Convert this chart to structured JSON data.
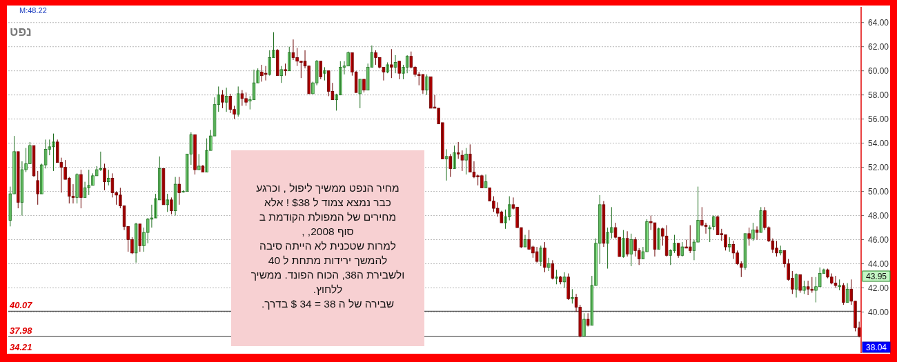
{
  "chart_data": {
    "type": "candlestick",
    "title": "נפט",
    "annotations": [
      "M:48.22",
      "34.21",
      "מחיר  הנפט ממשיך ליפול , וכרגע\nכבר נמצא  צמוד ל $38 ! אלא\nמחירים  של המפולת הקודמת ב\nסוף 2008, ,\nלמרות שטכנית לא הייתה סיבה\nלהמשך ירידות מתחת ל 40\nולשבירת ה38, הכוח הפונד. ממשיך\nללחוץ.\nשבירה של ה 38 = 34 $ בדרך.",
      "43.95",
      "38.04"
    ],
    "ref_lines": [
      {
        "axis": "y",
        "value": 40.07,
        "label": "40.07",
        "color": "#555555"
      },
      {
        "axis": "y",
        "value": 37.98,
        "label": "37.98",
        "color": "#555555"
      }
    ],
    "ylim": [
      36.6,
      65.3
    ],
    "yticks": [
      {
        "value": 40,
        "label": "40.00"
      },
      {
        "value": 42,
        "label": "42.00"
      },
      {
        "value": 44,
        "label": "44.00"
      },
      {
        "value": 46,
        "label": "46.00"
      },
      {
        "value": 48,
        "label": "48.00"
      },
      {
        "value": 50,
        "label": "50.00"
      },
      {
        "value": 52,
        "label": "52.00"
      },
      {
        "value": 54,
        "label": "54.00"
      },
      {
        "value": 56,
        "label": "56.00"
      },
      {
        "value": 58,
        "label": "58.00"
      },
      {
        "value": 60,
        "label": "60.00"
      },
      {
        "value": 62,
        "label": "62.00"
      },
      {
        "value": 64,
        "label": "64.00"
      }
    ],
    "grid": "y",
    "categories": [
      null,
      null,
      null,
      null,
      null,
      null,
      null,
      null,
      null,
      null,
      null,
      null,
      null,
      null,
      null,
      null,
      null,
      null,
      null,
      null,
      null,
      null,
      null,
      null,
      null,
      null,
      null,
      null,
      null,
      null,
      null,
      null,
      null,
      null,
      null,
      null,
      null,
      null,
      null,
      null,
      null,
      null,
      null,
      null,
      null,
      null,
      null,
      null,
      null,
      null,
      null,
      null,
      null,
      null,
      null,
      null,
      null,
      null,
      null,
      null,
      null,
      null,
      null,
      null,
      null,
      null,
      null,
      null,
      null,
      null,
      null,
      null,
      null,
      null,
      null,
      null,
      null,
      null,
      null,
      null,
      null,
      null,
      null,
      null,
      null,
      null,
      null,
      null,
      null,
      null,
      null,
      null,
      null,
      null,
      null,
      null,
      null,
      null,
      null,
      null,
      null,
      null,
      null,
      null,
      null,
      null,
      null,
      null,
      null,
      null,
      null,
      null,
      null,
      null,
      null,
      null,
      null,
      null,
      null,
      null,
      null,
      null,
      null,
      null,
      null,
      null,
      null,
      null,
      null,
      null,
      null,
      null,
      null,
      null,
      null,
      null,
      null,
      null,
      null,
      null,
      null,
      null,
      null,
      null,
      null,
      null,
      null,
      null,
      null,
      null,
      null,
      null,
      null,
      null,
      null,
      null,
      null,
      null,
      null,
      null,
      null,
      null,
      null,
      null,
      null,
      null,
      null,
      null,
      null,
      null,
      null,
      null,
      null,
      null,
      null,
      null,
      null,
      null,
      null,
      null,
      null,
      null,
      null,
      null,
      null,
      null,
      null,
      null,
      null,
      null,
      null,
      null,
      null,
      null,
      null,
      null,
      null,
      null,
      null,
      null,
      null,
      null,
      null,
      null,
      null,
      null,
      null,
      null,
      null,
      null,
      null,
      null,
      null,
      null,
      null,
      null,
      null
    ],
    "ohlc": [
      [
        47.6,
        50.4,
        47.1,
        49.8
      ],
      [
        49.8,
        54.6,
        49.8,
        53.3
      ],
      [
        53.3,
        53.3,
        48.6,
        49.1
      ],
      [
        49.1,
        52.5,
        48.0,
        51.8
      ],
      [
        51.8,
        53.6,
        51.6,
        52.3
      ],
      [
        52.3,
        54.1,
        52.3,
        53.8
      ],
      [
        53.8,
        53.8,
        51.2,
        51.3
      ],
      [
        50.9,
        51.7,
        48.9,
        49.8
      ],
      [
        49.8,
        52.3,
        49.8,
        52.2
      ],
      [
        52.2,
        54.3,
        51.9,
        53.5
      ],
      [
        53.5,
        54.3,
        53.0,
        53.7
      ],
      [
        53.7,
        54.8,
        51.7,
        54.1
      ],
      [
        54.1,
        54.3,
        52.4,
        52.4
      ],
      [
        52.4,
        52.8,
        49.9,
        52.0
      ],
      [
        52.0,
        52.6,
        51.0,
        51.0
      ],
      [
        51.1,
        51.2,
        49.0,
        49.6
      ],
      [
        49.6,
        50.6,
        49.0,
        49.5
      ],
      [
        49.5,
        51.5,
        49.0,
        51.4
      ],
      [
        51.4,
        51.8,
        48.6,
        49.5
      ],
      [
        49.5,
        50.8,
        49.5,
        50.3
      ],
      [
        50.3,
        51.8,
        49.7,
        50.5
      ],
      [
        50.5,
        51.5,
        50.5,
        51.3
      ],
      [
        51.3,
        52.1,
        51.3,
        51.8
      ],
      [
        51.8,
        53.3,
        51.7,
        51.9
      ],
      [
        51.9,
        52.3,
        50.1,
        50.8
      ],
      [
        50.8,
        51.8,
        50.5,
        51.1
      ],
      [
        51.1,
        51.5,
        49.5,
        49.9
      ],
      [
        49.9,
        50.0,
        48.9,
        49.7
      ],
      [
        49.7,
        50.3,
        48.6,
        48.8
      ],
      [
        48.8,
        48.8,
        46.8,
        47.1
      ],
      [
        47.1,
        47.1,
        45.0,
        46.0
      ],
      [
        46.0,
        46.2,
        44.8,
        44.9
      ],
      [
        44.9,
        47.4,
        44.1,
        47.3
      ],
      [
        47.3,
        47.3,
        45.0,
        45.5
      ],
      [
        45.5,
        47.0,
        45.0,
        46.6
      ],
      [
        46.6,
        47.8,
        45.7,
        47.7
      ],
      [
        47.7,
        48.9,
        47.0,
        47.8
      ],
      [
        47.8,
        49.8,
        47.8,
        49.4
      ],
      [
        49.3,
        52.9,
        49.3,
        51.9
      ],
      [
        51.9,
        51.9,
        48.9,
        48.9
      ],
      [
        48.9,
        49.8,
        48.3,
        49.3
      ],
      [
        49.3,
        49.5,
        48.1,
        48.4
      ],
      [
        48.4,
        51.2,
        48.0,
        50.6
      ],
      [
        50.6,
        51.2,
        48.9,
        49.9
      ],
      [
        50.0,
        50.1,
        49.9,
        50.0
      ],
      [
        50.0,
        53.1,
        50.0,
        53.1
      ],
      [
        53.1,
        54.9,
        52.2,
        54.7
      ],
      [
        54.7,
        54.7,
        51.4,
        51.8
      ],
      [
        51.8,
        53.1,
        51.8,
        52.1
      ],
      [
        52.1,
        52.2,
        51.6,
        51.6
      ],
      [
        51.6,
        54.4,
        51.6,
        53.4
      ],
      [
        53.4,
        55.1,
        53.4,
        54.6
      ],
      [
        54.6,
        57.8,
        54.6,
        57.2
      ],
      [
        57.2,
        58.7,
        56.6,
        58.0
      ],
      [
        58.0,
        58.4,
        56.9,
        57.4
      ],
      [
        57.4,
        58.6,
        56.6,
        57.9
      ],
      [
        57.9,
        58.1,
        56.5,
        56.8
      ],
      [
        56.8,
        57.1,
        56.0,
        56.4
      ],
      [
        56.4,
        58.7,
        56.2,
        58.1
      ],
      [
        58.1,
        58.4,
        57.1,
        57.7
      ],
      [
        57.7,
        58.2,
        57.1,
        57.4
      ],
      [
        57.5,
        57.9,
        56.8,
        57.6
      ],
      [
        57.6,
        60.1,
        57.6,
        59.0
      ],
      [
        59.0,
        60.2,
        59.0,
        60.0
      ],
      [
        59.9,
        60.5,
        59.1,
        59.6
      ],
      [
        59.8,
        60.4,
        59.2,
        59.7
      ],
      [
        59.7,
        61.7,
        59.6,
        61.1
      ],
      [
        61.1,
        63.2,
        61.1,
        61.7
      ],
      [
        61.7,
        61.8,
        59.6,
        59.6
      ],
      [
        59.6,
        60.4,
        59.0,
        60.1
      ],
      [
        60.1,
        60.6,
        59.6,
        60.0
      ],
      [
        60.0,
        62.0,
        60.0,
        61.5
      ],
      [
        61.5,
        62.6,
        60.9,
        61.1
      ],
      [
        61.1,
        61.9,
        60.4,
        60.8
      ],
      [
        60.8,
        60.8,
        59.4,
        60.7
      ],
      [
        60.8,
        61.7,
        60.2,
        60.4
      ],
      [
        60.4,
        60.4,
        58.1,
        58.1
      ],
      [
        58.1,
        59.1,
        58.1,
        59.0
      ],
      [
        59.0,
        60.9,
        58.8,
        60.8
      ],
      [
        60.8,
        60.8,
        59.3,
        59.5
      ],
      [
        59.8,
        60.3,
        59.2,
        60.0
      ],
      [
        60.0,
        60.0,
        57.9,
        58.3
      ],
      [
        58.3,
        59.0,
        57.6,
        57.6
      ],
      [
        57.6,
        58.1,
        56.7,
        58.0
      ],
      [
        58.0,
        60.8,
        58.0,
        60.3
      ],
      [
        60.3,
        60.8,
        59.7,
        60.4
      ],
      [
        60.4,
        61.6,
        60.4,
        61.5
      ],
      [
        61.5,
        61.5,
        59.6,
        59.9
      ],
      [
        59.9,
        60.0,
        58.2,
        58.2
      ],
      [
        58.1,
        59.3,
        56.9,
        59.3
      ],
      [
        59.3,
        59.3,
        58.2,
        58.4
      ],
      [
        58.4,
        60.6,
        58.4,
        60.3
      ],
      [
        60.3,
        62.1,
        60.3,
        61.5
      ],
      [
        61.5,
        61.7,
        60.5,
        61.1
      ],
      [
        61.1,
        61.1,
        60.2,
        60.3
      ],
      [
        60.3,
        60.3,
        59.2,
        59.9
      ],
      [
        59.9,
        60.7,
        59.8,
        60.5
      ],
      [
        60.5,
        61.8,
        59.4,
        60.3
      ],
      [
        60.3,
        61.3,
        59.8,
        60.7
      ],
      [
        60.8,
        60.8,
        59.3,
        59.8
      ],
      [
        59.8,
        60.5,
        59.3,
        60.3
      ],
      [
        60.3,
        61.3,
        59.8,
        61.2
      ],
      [
        61.2,
        61.6,
        60.2,
        60.3
      ],
      [
        60.3,
        60.4,
        59.5,
        59.7
      ],
      [
        59.7,
        59.9,
        58.8,
        59.6
      ],
      [
        59.7,
        59.7,
        58.1,
        58.4
      ],
      [
        58.4,
        59.7,
        58.0,
        59.5
      ],
      [
        59.5,
        59.5,
        56.9,
        56.9
      ],
      [
        57.0,
        58.0,
        56.9,
        56.9
      ],
      [
        56.9,
        56.9,
        55.6,
        55.6
      ],
      [
        55.7,
        55.7,
        52.7,
        52.7
      ],
      [
        52.7,
        53.5,
        50.9,
        52.9
      ],
      [
        52.9,
        53.1,
        51.2,
        51.9
      ],
      [
        51.9,
        53.8,
        51.9,
        53.2
      ],
      [
        53.2,
        54.1,
        52.7,
        53.1
      ],
      [
        53.0,
        53.4,
        51.7,
        52.6
      ],
      [
        52.6,
        53.6,
        51.4,
        53.1
      ],
      [
        53.1,
        53.9,
        51.6,
        51.6
      ],
      [
        51.6,
        52.5,
        51.1,
        51.2
      ],
      [
        51.3,
        51.4,
        50.5,
        51.2
      ],
      [
        51.3,
        51.4,
        50.3,
        50.3
      ],
      [
        50.3,
        51.4,
        50.3,
        50.8
      ],
      [
        50.3,
        50.3,
        49.2,
        49.2
      ],
      [
        49.2,
        49.6,
        48.3,
        48.6
      ],
      [
        48.6,
        49.1,
        47.9,
        48.2
      ],
      [
        48.3,
        48.4,
        47.4,
        47.4
      ],
      [
        47.4,
        48.5,
        46.9,
        47.9
      ],
      [
        47.9,
        49.6,
        47.6,
        48.9
      ],
      [
        48.9,
        49.5,
        48.5,
        48.6
      ],
      [
        48.7,
        48.7,
        47.0,
        47.0
      ],
      [
        47.0,
        47.0,
        45.3,
        45.4
      ],
      [
        45.4,
        46.4,
        45.4,
        46.0
      ],
      [
        46.0,
        46.8,
        45.2,
        45.2
      ],
      [
        45.4,
        45.5,
        44.5,
        44.9
      ],
      [
        45.0,
        45.4,
        44.1,
        44.2
      ],
      [
        44.2,
        45.5,
        43.8,
        45.3
      ],
      [
        45.3,
        45.8,
        43.3,
        43.7
      ],
      [
        43.7,
        44.5,
        43.4,
        44.0
      ],
      [
        44.0,
        44.3,
        42.7,
        42.8
      ],
      [
        42.8,
        43.5,
        42.3,
        42.9
      ],
      [
        42.9,
        43.0,
        42.3,
        42.5
      ],
      [
        42.5,
        43.3,
        42.0,
        42.9
      ],
      [
        42.9,
        43.2,
        41.0,
        41.1
      ],
      [
        41.1,
        41.9,
        40.7,
        41.2
      ],
      [
        41.2,
        41.5,
        40.0,
        40.4
      ],
      [
        40.4,
        40.6,
        37.9,
        38.0
      ],
      [
        38.0,
        39.9,
        38.0,
        39.4
      ],
      [
        39.4,
        39.9,
        38.8,
        38.9
      ],
      [
        38.9,
        43.0,
        38.9,
        42.2
      ],
      [
        42.2,
        46.1,
        42.2,
        45.7
      ],
      [
        45.7,
        49.7,
        44.0,
        48.9
      ],
      [
        48.9,
        49.2,
        45.4,
        45.7
      ],
      [
        45.7,
        47.0,
        43.6,
        46.6
      ],
      [
        46.6,
        48.7,
        46.1,
        47.0
      ],
      [
        47.0,
        47.4,
        46.1,
        46.2
      ],
      [
        46.2,
        46.2,
        44.6,
        44.6
      ],
      [
        44.6,
        46.8,
        44.5,
        46.1
      ],
      [
        46.1,
        46.7,
        44.6,
        44.8
      ],
      [
        44.8,
        46.5,
        43.8,
        46.0
      ],
      [
        46.0,
        46.2,
        44.6,
        45.1
      ],
      [
        45.1,
        45.3,
        43.9,
        44.4
      ],
      [
        44.4,
        45.4,
        44.4,
        45.0
      ],
      [
        45.0,
        47.7,
        45.0,
        47.5
      ],
      [
        47.5,
        48.0,
        46.8,
        47.4
      ],
      [
        47.4,
        47.4,
        44.6,
        45.2
      ],
      [
        45.2,
        47.0,
        45.2,
        46.9
      ],
      [
        46.9,
        47.0,
        45.5,
        46.3
      ],
      [
        46.3,
        47.2,
        44.6,
        44.7
      ],
      [
        44.7,
        45.2,
        43.9,
        45.1
      ],
      [
        45.1,
        46.4,
        44.9,
        45.7
      ],
      [
        45.7,
        45.7,
        44.5,
        44.7
      ],
      [
        44.7,
        45.8,
        44.6,
        45.4
      ],
      [
        45.4,
        46.0,
        45.3,
        45.3
      ],
      [
        45.4,
        47.2,
        44.9,
        45.1
      ],
      [
        45.1,
        46.0,
        44.3,
        45.8
      ],
      [
        45.8,
        50.4,
        45.8,
        47.6
      ],
      [
        47.6,
        48.7,
        47.1,
        47.2
      ],
      [
        47.2,
        47.4,
        46.5,
        47.1
      ],
      [
        46.9,
        47.2,
        45.8,
        47.0
      ],
      [
        47.1,
        48.0,
        46.8,
        47.9
      ],
      [
        47.9,
        48.0,
        46.4,
        46.4
      ],
      [
        46.5,
        46.9,
        45.9,
        46.4
      ],
      [
        46.4,
        46.4,
        45.1,
        45.4
      ],
      [
        45.4,
        46.2,
        45.0,
        45.6
      ],
      [
        45.6,
        45.9,
        44.4,
        44.9
      ],
      [
        44.9,
        45.1,
        43.9,
        44.0
      ],
      [
        44.0,
        44.2,
        42.9,
        43.7
      ],
      [
        43.7,
        46.5,
        43.5,
        46.5
      ],
      [
        46.5,
        47.0,
        45.5,
        46.1
      ],
      [
        46.1,
        47.4,
        45.9,
        46.8
      ],
      [
        46.8,
        47.1,
        46.0,
        46.6
      ],
      [
        46.6,
        48.7,
        46.6,
        48.4
      ],
      [
        48.4,
        48.7,
        46.8,
        47.0
      ],
      [
        47.0,
        47.1,
        45.8,
        45.9
      ],
      [
        45.9,
        46.1,
        44.9,
        45.2
      ],
      [
        45.3,
        45.9,
        44.6,
        44.9
      ],
      [
        44.9,
        45.5,
        44.7,
        45.1
      ],
      [
        45.1,
        45.1,
        43.7,
        44.0
      ],
      [
        44.0,
        44.4,
        42.6,
        42.7
      ],
      [
        42.8,
        43.4,
        41.5,
        41.9
      ],
      [
        41.9,
        43.2,
        41.2,
        43.1
      ],
      [
        43.1,
        43.1,
        41.6,
        41.8
      ],
      [
        41.8,
        42.6,
        41.5,
        42.1
      ],
      [
        42.1,
        42.6,
        41.4,
        41.9
      ],
      [
        41.9,
        42.9,
        41.6,
        41.8
      ],
      [
        41.8,
        42.9,
        40.8,
        42.1
      ],
      [
        42.1,
        43.7,
        42.1,
        43.2
      ],
      [
        43.2,
        43.6,
        43.2,
        43.5
      ],
      [
        43.5,
        43.6,
        42.8,
        42.9
      ],
      [
        42.9,
        43.2,
        42.3,
        42.4
      ],
      [
        42.4,
        43.0,
        42.0,
        42.2
      ],
      [
        42.1,
        42.7,
        41.8,
        42.2
      ],
      [
        42.2,
        42.4,
        40.6,
        40.8
      ],
      [
        40.8,
        42.4,
        40.8,
        41.9
      ],
      [
        41.9,
        42.7,
        40.6,
        40.9
      ],
      [
        40.9,
        40.9,
        38.4,
        38.7
      ],
      [
        38.7,
        39.2,
        37.9,
        38.0
      ]
    ]
  }
}
